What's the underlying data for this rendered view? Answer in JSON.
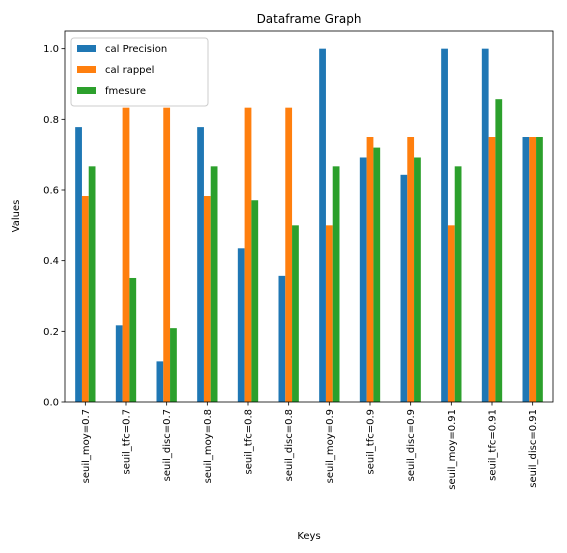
{
  "chart_data": {
    "type": "bar",
    "title": "Dataframe Graph",
    "xlabel": "Keys",
    "ylabel": "Values",
    "ylim": [
      0,
      1.05
    ],
    "yticks": [
      0.0,
      0.2,
      0.4,
      0.6,
      0.8,
      1.0
    ],
    "ytick_labels": [
      "0.0",
      "0.2",
      "0.4",
      "0.6",
      "0.8",
      "1.0"
    ],
    "grid": false,
    "legend_position": "top-left",
    "categories": [
      "seuil_moy=0.7",
      "seuil_tfc=0.7",
      "seuil_disc=0.7",
      "seuil_moy=0.8",
      "seuil_tfc=0.8",
      "seuil_disc=0.8",
      "seuil_moy=0.9",
      "seuil_tfc=0.9",
      "seuil_disc=0.9",
      "seuil_moy=0.91",
      "seuil_tfc=0.91",
      "seuil_disc=0.91"
    ],
    "series": [
      {
        "name": "cal Precision",
        "color": "#1f77b4",
        "values": [
          0.778,
          0.217,
          0.115,
          0.778,
          0.435,
          0.357,
          1.0,
          0.692,
          0.643,
          1.0,
          1.0,
          0.75
        ]
      },
      {
        "name": "cal rappel",
        "color": "#ff7f0e",
        "values": [
          0.583,
          0.833,
          0.833,
          0.583,
          0.833,
          0.833,
          0.5,
          0.75,
          0.75,
          0.5,
          0.75,
          0.75
        ]
      },
      {
        "name": "fmesure",
        "color": "#2ca02c",
        "values": [
          0.667,
          0.351,
          0.209,
          0.667,
          0.571,
          0.5,
          0.667,
          0.72,
          0.692,
          0.667,
          0.857,
          0.75
        ]
      }
    ]
  }
}
